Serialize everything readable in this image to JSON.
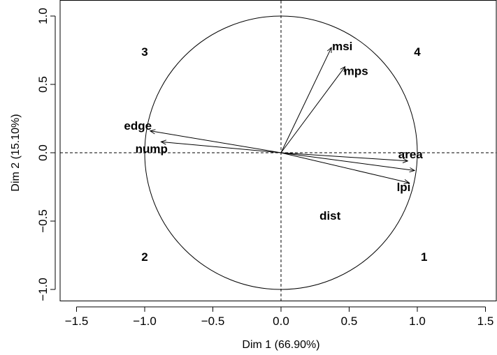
{
  "chart_data": {
    "type": "scatter",
    "subtype": "pca-variables-factor-map",
    "xlabel": "Dim 1 (66.90%)",
    "ylabel": "Dim 2 (15.10%)",
    "xlim": [
      -1.5,
      1.5
    ],
    "ylim": [
      -1.0,
      1.0
    ],
    "x_ticks": [
      "−1.5",
      "−1.0",
      "−0.5",
      "0.0",
      "0.5",
      "1.0",
      "1.5"
    ],
    "y_ticks": [
      "−1.0",
      "−0.5",
      "0.0",
      "0.5",
      "1.0"
    ],
    "grid": false,
    "reference_lines": {
      "x": 0,
      "y": 0,
      "style": "dashed"
    },
    "correlation_circle_radius": 1.0,
    "arrows": [
      {
        "name": "msi",
        "x": 0.37,
        "y": 0.77,
        "label_x": 0.45,
        "label_y": 0.78
      },
      {
        "name": "mps",
        "x": 0.47,
        "y": 0.63,
        "label_x": 0.55,
        "label_y": 0.6
      },
      {
        "name": "edge",
        "x": -0.96,
        "y": 0.16,
        "label_x": -1.05,
        "label_y": 0.2
      },
      {
        "name": "nump",
        "x": -0.88,
        "y": 0.08,
        "label_x": -0.95,
        "label_y": 0.03
      },
      {
        "name": "area",
        "x": 0.93,
        "y": -0.06,
        "label_x": 0.95,
        "label_y": -0.01
      },
      {
        "name": "",
        "x": 0.98,
        "y": -0.13,
        "label_x": 0.98,
        "label_y": -0.13
      },
      {
        "name": "lpi",
        "x": 0.94,
        "y": -0.22,
        "label_x": 0.9,
        "label_y": -0.25
      },
      {
        "name": "dist",
        "x": 0.0,
        "y": 0.0,
        "label_x": 0.36,
        "label_y": -0.46,
        "arrow": false
      }
    ],
    "quadrant_labels": [
      {
        "text": "1",
        "x": 1.05,
        "y": -0.76
      },
      {
        "text": "2",
        "x": -1.0,
        "y": -0.76
      },
      {
        "text": "3",
        "x": -1.0,
        "y": 0.74
      },
      {
        "text": "4",
        "x": 1.0,
        "y": 0.74
      }
    ]
  }
}
